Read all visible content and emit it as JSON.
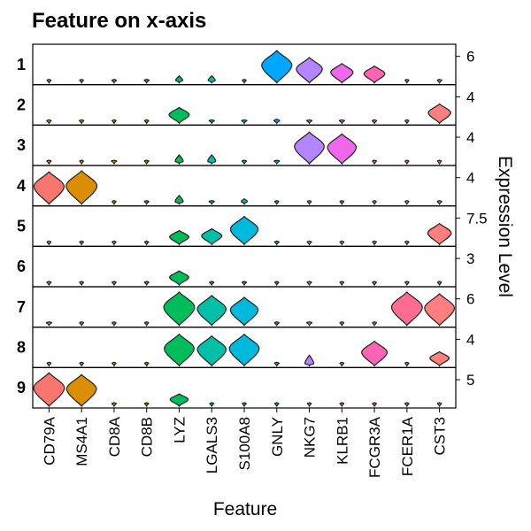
{
  "chart_data": {
    "type": "violin",
    "title": "Feature on x-axis",
    "xlabel": "Feature",
    "ylabel": "Expression Level",
    "features": [
      "CD79A",
      "MS4A1",
      "CD8A",
      "CD8B",
      "LYZ",
      "LGALS3",
      "S100A8",
      "GNLY",
      "NKG7",
      "KLRB1",
      "FCGR3A",
      "FCER1A",
      "CST3"
    ],
    "colors": [
      "#F8766D",
      "#DB8E00",
      "#AEA200",
      "#64B200",
      "#00BD5C",
      "#00C1A7",
      "#00BADE",
      "#00A6FF",
      "#B385FF",
      "#EF67EB",
      "#FF63B6",
      "#FF6C91",
      "#FF7F7F"
    ],
    "clusters": [
      {
        "name": "1",
        "right_tick": "6",
        "levels": [
          0.02,
          0.01,
          0.05,
          0.07,
          0.2,
          0.2,
          0.02,
          0.92,
          0.72,
          0.55,
          0.48,
          0.01,
          0.05
        ]
      },
      {
        "name": "2",
        "right_tick": "4",
        "levels": [
          0.05,
          0.05,
          0.02,
          0.03,
          0.45,
          0.1,
          0.1,
          0.12,
          0.1,
          0.1,
          0.05,
          0.01,
          0.55
        ]
      },
      {
        "name": "3",
        "right_tick": "4",
        "levels": [
          0.05,
          0.02,
          0.1,
          0.05,
          0.25,
          0.25,
          0.05,
          0.1,
          0.9,
          0.85,
          0.02,
          0.01,
          0.02
        ]
      },
      {
        "name": "4",
        "right_tick": "4",
        "levels": [
          0.92,
          0.95,
          0.02,
          0.05,
          0.25,
          0.1,
          0.15,
          0.02,
          0.02,
          0.02,
          0.01,
          0.01,
          0.05
        ]
      },
      {
        "name": "5",
        "right_tick": "7.5",
        "levels": [
          0.02,
          0.02,
          0.02,
          0.02,
          0.4,
          0.45,
          0.8,
          0.05,
          0.05,
          0.02,
          0.02,
          0.02,
          0.6
        ]
      },
      {
        "name": "6",
        "right_tick": "3",
        "levels": [
          0.05,
          0.02,
          0.03,
          0.05,
          0.4,
          0.05,
          0.05,
          0.02,
          0.05,
          0.02,
          0.02,
          0.02,
          0.02
        ]
      },
      {
        "name": "7",
        "right_tick": "6",
        "levels": [
          0.1,
          0.02,
          0.02,
          0.02,
          0.95,
          0.85,
          0.8,
          0.05,
          0.1,
          0.02,
          0.02,
          0.95,
          0.9
        ]
      },
      {
        "name": "8",
        "right_tick": "4",
        "levels": [
          0.02,
          0.02,
          0.02,
          0.02,
          0.9,
          0.85,
          0.9,
          0.05,
          0.3,
          0.02,
          0.7,
          0.02,
          0.4
        ]
      },
      {
        "name": "9",
        "right_tick": "5",
        "levels": [
          0.95,
          0.9,
          0.05,
          0.02,
          0.35,
          0.02,
          0.02,
          0.02,
          0.02,
          0.02,
          0.02,
          0.02,
          0.02
        ]
      }
    ]
  }
}
